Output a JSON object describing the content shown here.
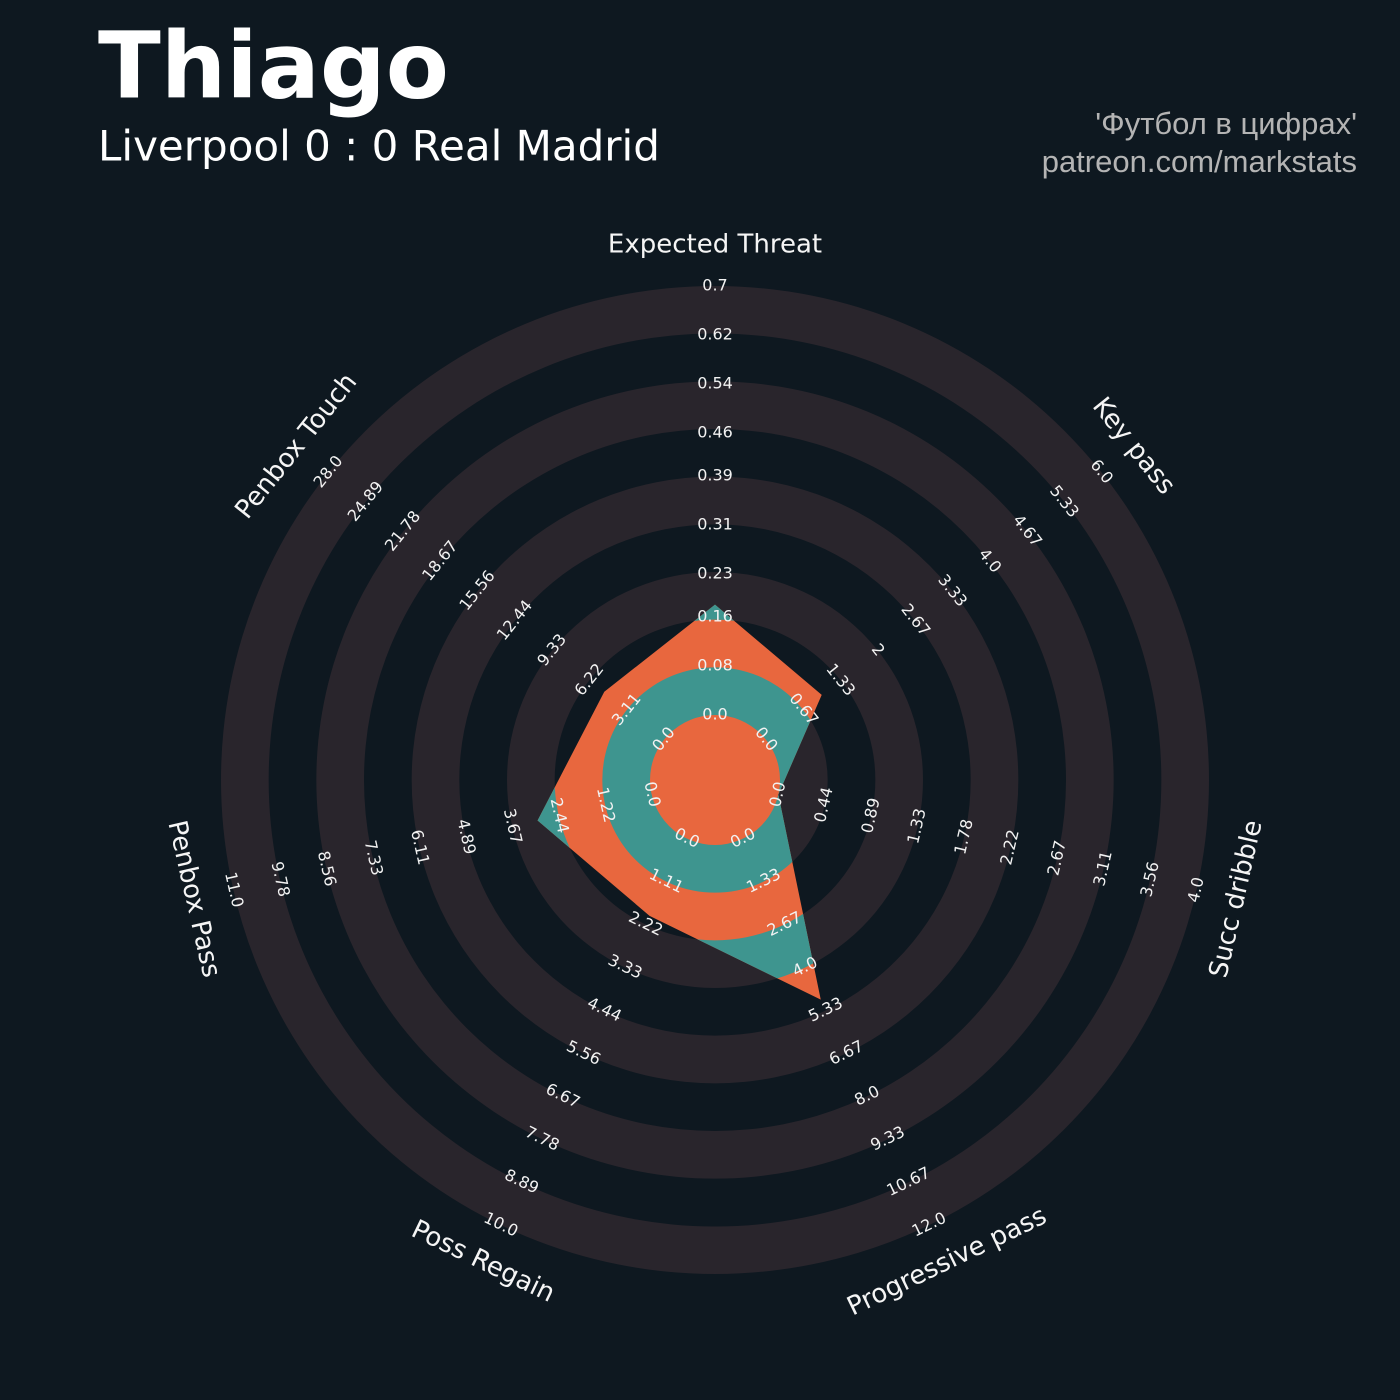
{
  "chart_data": {
    "type": "radar",
    "title": "Thiago",
    "subtitle": "Liverpool 0 : 0 Real Madrid",
    "credits": [
      "'Футбол в цифрах'",
      "patreon.com/markstats"
    ],
    "categories": [
      "Expected Threat",
      "Key pass",
      "Succ dribble",
      "Progressive pass",
      "Poss Regain",
      "Penbox Pass",
      "Penbox Touch"
    ],
    "values": [
      0.18,
      1,
      0,
      5,
      2,
      3,
      5
    ],
    "ranges": [
      [
        0,
        0.7
      ],
      [
        0,
        6
      ],
      [
        0,
        4
      ],
      [
        0,
        12
      ],
      [
        0,
        10
      ],
      [
        0,
        11
      ],
      [
        0,
        28
      ]
    ],
    "ticks": [
      [
        {
          "value": 0,
          "label": "0.0"
        },
        0.08,
        0.16,
        0.23,
        0.31,
        0.39,
        0.46,
        0.54,
        0.62,
        0.7
      ],
      [
        {
          "value": 0,
          "label": "0.0"
        },
        0.67,
        1.33,
        2,
        {
          "value": 2.67,
          "label": "2.67"
        },
        3.33,
        {
          "value": 4,
          "label": "4.0"
        },
        4.67,
        5.33,
        {
          "value": 6,
          "label": "6.0"
        }
      ],
      [
        {
          "value": 0,
          "label": "0.0"
        },
        0.44,
        0.89,
        1.33,
        1.78,
        2.22,
        2.67,
        3.11,
        3.56,
        {
          "value": 4,
          "label": "4.0"
        }
      ],
      [
        {
          "value": 0,
          "label": "0.0"
        },
        1.33,
        2.67,
        {
          "value": 4,
          "label": "4.0"
        },
        5.33,
        6.67,
        {
          "value": 8,
          "label": "8.0"
        },
        9.33,
        10.67,
        {
          "value": 12,
          "label": "12.0"
        }
      ],
      [
        {
          "value": 0,
          "label": "0.0"
        },
        1.11,
        2.22,
        3.33,
        4.44,
        5.56,
        6.67,
        7.78,
        8.89,
        {
          "value": 10,
          "label": "10.0"
        }
      ],
      [
        {
          "value": 0,
          "label": "0.0"
        },
        1.22,
        2.44,
        3.67,
        4.89,
        6.11,
        7.33,
        8.56,
        9.78,
        {
          "value": 11,
          "label": "11.0"
        }
      ],
      [
        {
          "value": 0,
          "label": "0.0"
        },
        3.11,
        6.22,
        9.33,
        12.44,
        15.56,
        18.67,
        21.78,
        24.89,
        {
          "value": 28,
          "label": "28.0"
        }
      ]
    ],
    "color": "#e8673e",
    "ring_color": "#29252c",
    "ring_highlight": "#3e958f"
  }
}
